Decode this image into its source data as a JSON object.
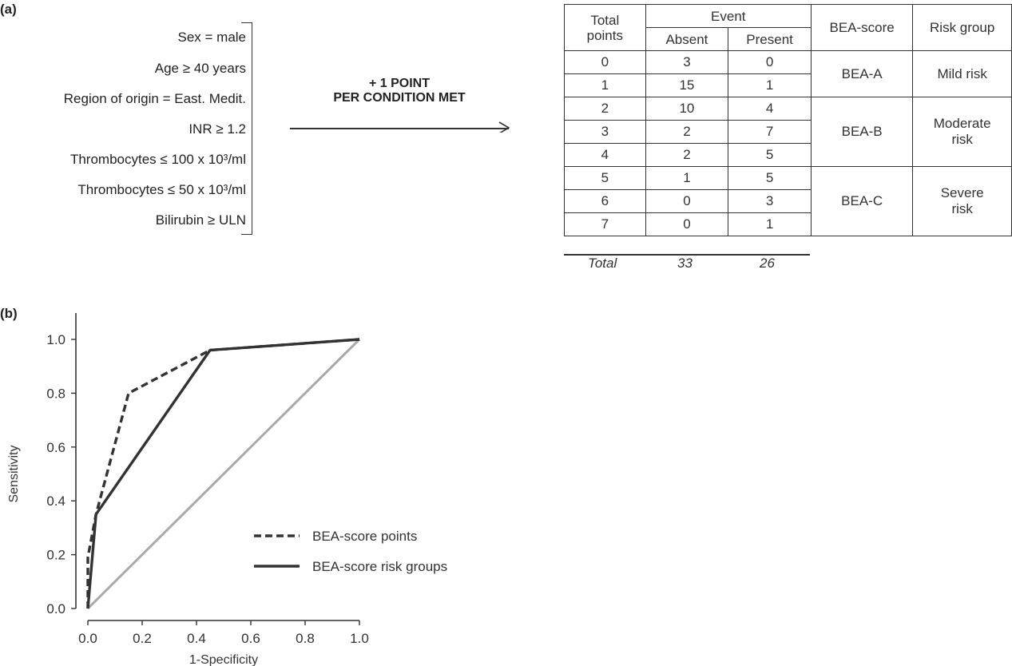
{
  "panel_a": {
    "label": "(a)",
    "conditions": [
      "Sex = male",
      "Age ≥ 40 years",
      "Region of origin = East. Medit.",
      "INR ≥ 1.2",
      "Thrombocytes ≤ 100 x 10³/ml",
      "Thrombocytes ≤ 50 x 10³/ml",
      "Bilirubin ≥ ULN"
    ],
    "arrow_label_line1": "+ 1 POINT",
    "arrow_label_line2": "PER CONDITION MET",
    "table": {
      "header_total_points_1": "Total",
      "header_total_points_2": "points",
      "header_event": "Event",
      "header_absent": "Absent",
      "header_present": "Present",
      "header_bea": "BEA-score",
      "header_risk": "Risk group",
      "rows": [
        {
          "points": "0",
          "absent": "3",
          "present": "0"
        },
        {
          "points": "1",
          "absent": "15",
          "present": "1"
        },
        {
          "points": "2",
          "absent": "10",
          "present": "4"
        },
        {
          "points": "3",
          "absent": "2",
          "present": "7"
        },
        {
          "points": "4",
          "absent": "2",
          "present": "5"
        },
        {
          "points": "5",
          "absent": "1",
          "present": "5"
        },
        {
          "points": "6",
          "absent": "0",
          "present": "3"
        },
        {
          "points": "7",
          "absent": "0",
          "present": "1"
        }
      ],
      "groups": [
        {
          "score": "BEA-A",
          "risk_line1": "Mild risk",
          "risk_line2": ""
        },
        {
          "score": "BEA-B",
          "risk_line1": "Moderate",
          "risk_line2": "risk"
        },
        {
          "score": "BEA-C",
          "risk_line1": "Severe",
          "risk_line2": "risk"
        }
      ],
      "total_label": "Total",
      "total_absent": "33",
      "total_present": "26"
    }
  },
  "panel_b": {
    "label": "(b)"
  },
  "chart_data": {
    "type": "line",
    "title": "",
    "xlabel": "1-Specificity",
    "ylabel": "Sensitivity",
    "xlim": [
      0.0,
      1.0
    ],
    "ylim": [
      0.0,
      1.0
    ],
    "xticks": [
      "0.0",
      "0.2",
      "0.4",
      "0.6",
      "0.8",
      "1.0"
    ],
    "yticks": [
      "0.0",
      "0.2",
      "0.4",
      "0.6",
      "0.8",
      "1.0"
    ],
    "grid": false,
    "legend_position": "lower-right",
    "series": [
      {
        "name": "BEA-score points",
        "style": "dashed",
        "color": "#333333",
        "x": [
          0.0,
          0.0,
          0.03,
          0.15,
          0.45,
          1.0
        ],
        "y": [
          0.0,
          0.19,
          0.35,
          0.8,
          0.96,
          1.0
        ]
      },
      {
        "name": "BEA-score risk groups",
        "style": "solid",
        "color": "#333333",
        "x": [
          0.0,
          0.03,
          0.45,
          1.0
        ],
        "y": [
          0.0,
          0.35,
          0.96,
          1.0
        ]
      },
      {
        "name": "",
        "style": "solid",
        "color": "#aaaaaa",
        "x": [
          0.0,
          1.0
        ],
        "y": [
          0.0,
          1.0
        ]
      }
    ]
  }
}
